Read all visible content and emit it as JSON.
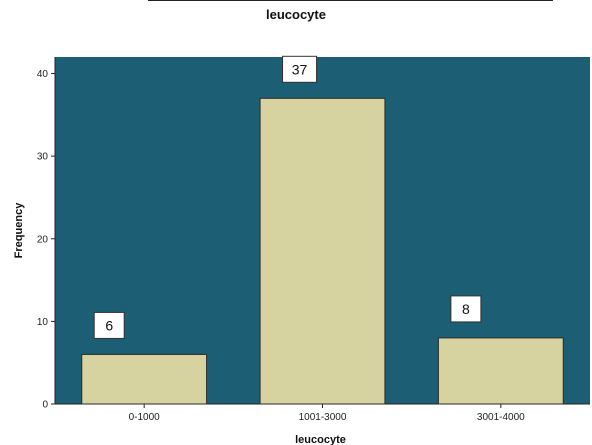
{
  "chart_data": {
    "type": "bar",
    "title": "leucocyte",
    "xlabel": "leucocyte",
    "ylabel": "Frequency",
    "categories": [
      "0-1000",
      "1001-3000",
      "3001-4000"
    ],
    "values": [
      6,
      37,
      8
    ],
    "data_labels": [
      "6",
      "37",
      "8"
    ],
    "ylim": [
      0,
      42
    ],
    "yticks": [
      0,
      10,
      20,
      30,
      40
    ],
    "grid": false,
    "legend": "none",
    "colors": {
      "plot_background": "#1c5e73",
      "bar_fill": "#d6d3a0",
      "bar_stroke": "#2b2b2b",
      "label_box": "#ffffff"
    }
  }
}
